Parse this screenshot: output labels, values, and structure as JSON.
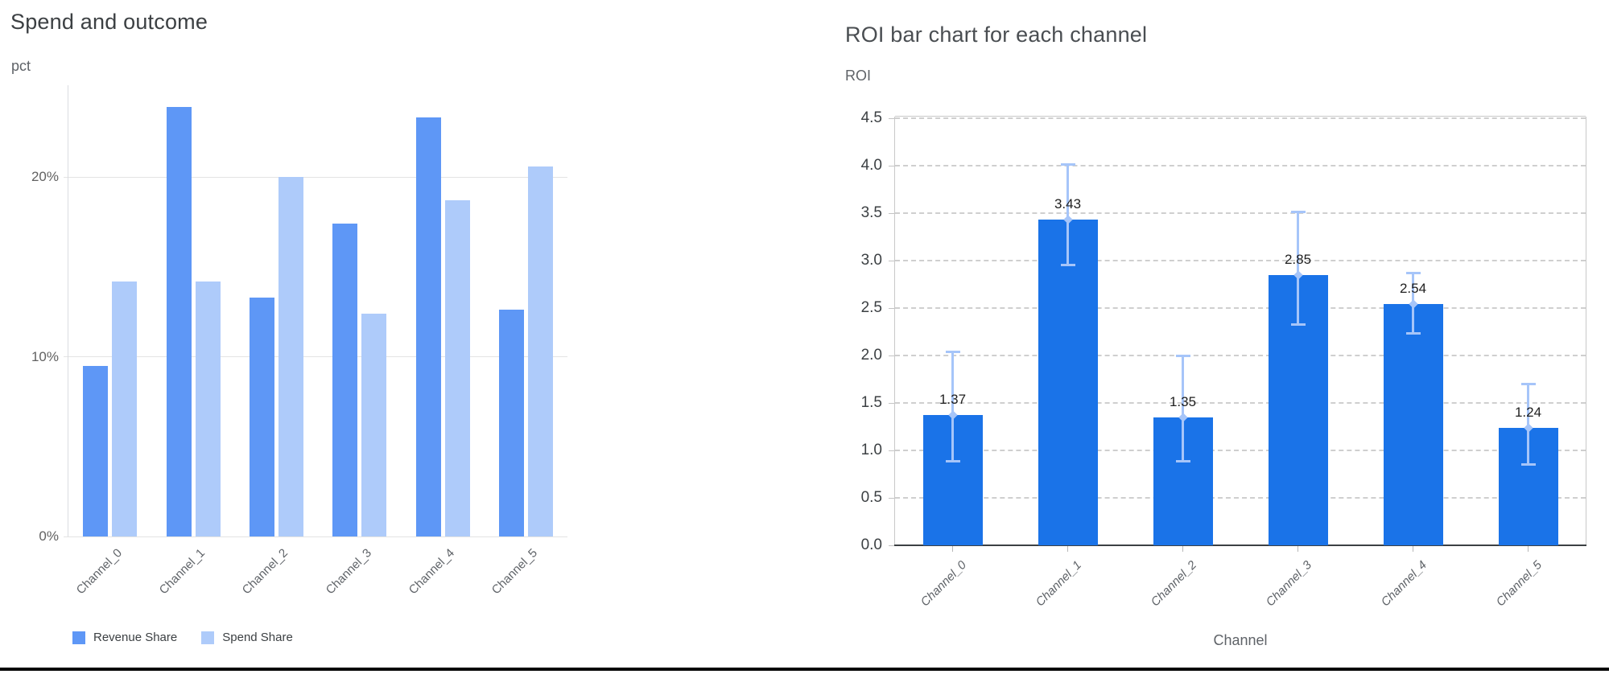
{
  "page": {
    "background": "#ffffff"
  },
  "chart_data": [
    {
      "type": "bar",
      "title": "Spend and outcome",
      "unit_label": "pct",
      "categories": [
        "Channel_0",
        "Channel_1",
        "Channel_2",
        "Channel_3",
        "Channel_4",
        "Channel_5"
      ],
      "series": [
        {
          "name": "Revenue Share",
          "color": "#5e97f6",
          "values": [
            9.5,
            23.9,
            13.3,
            17.4,
            23.3,
            12.6
          ]
        },
        {
          "name": "Spend Share",
          "color": "#aecbfa",
          "values": [
            14.2,
            14.2,
            20.0,
            12.4,
            18.7,
            20.6
          ]
        }
      ],
      "y_ticks": [
        {
          "value": 0,
          "label": "0%"
        },
        {
          "value": 10,
          "label": "10%"
        },
        {
          "value": 20,
          "label": "20%"
        }
      ],
      "ylim": [
        0,
        25.1
      ],
      "grid": "horizontal-solid",
      "legend_position": "bottom-left"
    },
    {
      "type": "bar",
      "title": "ROI bar chart for each channel",
      "ylabel": "ROI",
      "xlabel": "Channel",
      "categories": [
        "Channel_0",
        "Channel_1",
        "Channel_2",
        "Channel_3",
        "Channel_4",
        "Channel_5"
      ],
      "values": [
        1.37,
        3.43,
        1.35,
        2.85,
        2.54,
        1.24
      ],
      "bar_labels": [
        "1.37",
        "3.43",
        "1.35",
        "2.85",
        "2.54",
        "1.24"
      ],
      "error_low": [
        0.88,
        2.95,
        0.88,
        2.32,
        2.23,
        0.85
      ],
      "error_high": [
        2.04,
        4.02,
        2.0,
        3.52,
        2.87,
        1.7
      ],
      "bar_color": "#1a73e8",
      "error_color": "#a6c5f9",
      "y_ticks": [
        {
          "value": 0.0,
          "label": "0.0"
        },
        {
          "value": 0.5,
          "label": "0.5"
        },
        {
          "value": 1.0,
          "label": "1.0"
        },
        {
          "value": 1.5,
          "label": "1.5"
        },
        {
          "value": 2.0,
          "label": "2.0"
        },
        {
          "value": 2.5,
          "label": "2.5"
        },
        {
          "value": 3.0,
          "label": "3.0"
        },
        {
          "value": 3.5,
          "label": "3.5"
        },
        {
          "value": 4.0,
          "label": "4.0"
        },
        {
          "value": 4.5,
          "label": "4.5"
        }
      ],
      "ylim": [
        0,
        4.53
      ],
      "grid": "horizontal-dashed"
    }
  ]
}
